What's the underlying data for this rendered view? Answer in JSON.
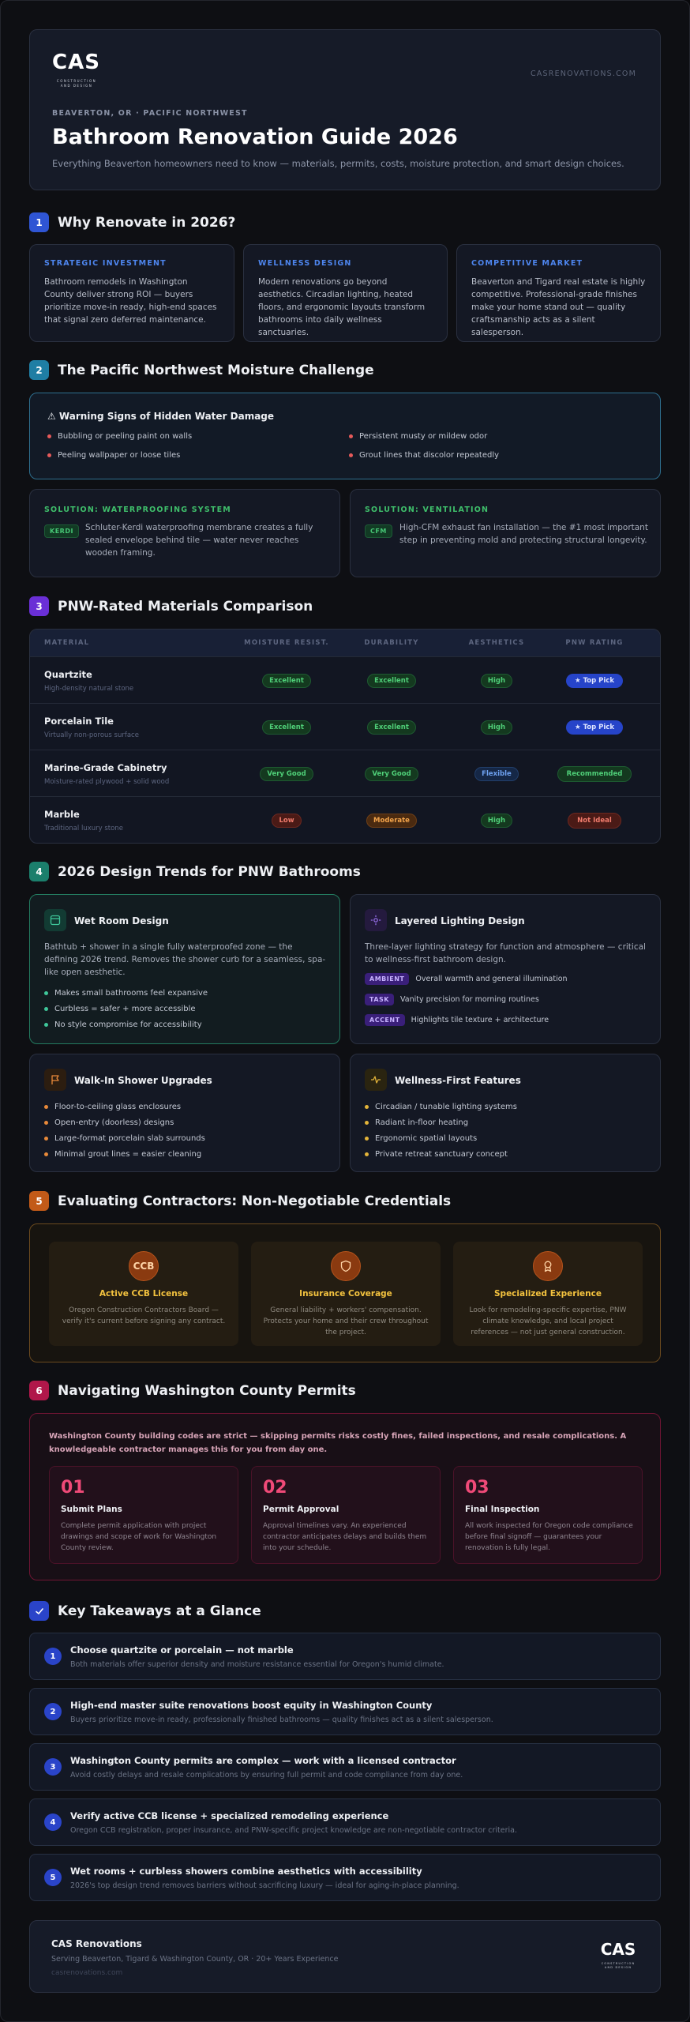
{
  "brand": {
    "logo": "CAS",
    "logo_sub": "CONSTRUCTION AND DESIGN",
    "site": "CASRENOVATIONS.COM"
  },
  "hero": {
    "location": "BEAVERTON, OR · PACIFIC NORTHWEST",
    "title": "Bathroom Renovation Guide 2026",
    "subtitle": "Everything Beaverton homeowners need to know — materials, permits, costs, moisture protection, and smart design choices."
  },
  "s1": {
    "num": "1",
    "title": "Why Renovate in 2026?",
    "cards": [
      {
        "kicker": "STRATEGIC INVESTMENT",
        "text": "Bathroom remodels in Washington County deliver strong ROI — buyers prioritize move-in ready, high-end spaces that signal zero deferred maintenance."
      },
      {
        "kicker": "WELLNESS DESIGN",
        "text": "Modern renovations go beyond aesthetics. Circadian lighting, heated floors, and ergonomic layouts transform bathrooms into daily wellness sanctuaries."
      },
      {
        "kicker": "COMPETITIVE MARKET",
        "text": "Beaverton and Tigard real estate is highly competitive. Professional-grade finishes make your home stand out — quality craftsmanship acts as a silent salesperson."
      }
    ]
  },
  "s2": {
    "num": "2",
    "title": "The Pacific Northwest Moisture Challenge",
    "warning": {
      "title": "⚠ Warning Signs of Hidden Water Damage",
      "items": [
        "Bubbling or peeling paint on walls",
        "Persistent musty or mildew odor",
        "Peeling wallpaper or loose tiles",
        "Grout lines that discolor repeatedly"
      ]
    },
    "solutions": [
      {
        "kicker": "SOLUTION: WATERPROOFING SYSTEM",
        "tag": "KERDI",
        "text": "Schluter-Kerdi waterproofing membrane creates a fully sealed envelope behind tile — water never reaches wooden framing."
      },
      {
        "kicker": "SOLUTION: VENTILATION",
        "tag": "CFM",
        "text": "High-CFM exhaust fan installation — the #1 most important step in preventing mold and protecting structural longevity."
      }
    ]
  },
  "s3": {
    "num": "3",
    "title": "PNW-Rated Materials Comparison",
    "headers": [
      "MATERIAL",
      "MOISTURE RESIST.",
      "DURABILITY",
      "AESTHETICS",
      "PNW RATING"
    ],
    "rows": [
      {
        "name": "Quartzite",
        "sub": "High-density natural stone",
        "moisture": "Excellent",
        "durability": "Excellent",
        "aesthetics": "High",
        "rating": "★ Top Pick"
      },
      {
        "name": "Porcelain Tile",
        "sub": "Virtually non-porous surface",
        "moisture": "Excellent",
        "durability": "Excellent",
        "aesthetics": "High",
        "rating": "★ Top Pick"
      },
      {
        "name": "Marine-Grade Cabinetry",
        "sub": "Moisture-rated plywood + solid wood",
        "moisture": "Very Good",
        "durability": "Very Good",
        "aesthetics": "Flexible",
        "rating": "Recommended"
      },
      {
        "name": "Marble",
        "sub": "Traditional luxury stone",
        "moisture": "Low",
        "durability": "Moderate",
        "aesthetics": "High",
        "rating": "Not Ideal"
      }
    ]
  },
  "s4": {
    "num": "4",
    "title": "2026 Design Trends for PNW Bathrooms",
    "wet": {
      "title": "Wet Room Design",
      "text": "Bathtub + shower in a single fully waterproofed zone — the defining 2026 trend. Removes the shower curb for a seamless, spa-like open aesthetic.",
      "items": [
        "Makes small bathrooms feel expansive",
        "Curbless = safer + more accessible",
        "No style compromise for accessibility"
      ]
    },
    "light": {
      "title": "Layered Lighting Design",
      "text": "Three-layer lighting strategy for function and atmosphere — critical to wellness-first bathroom design.",
      "layers": [
        {
          "tag": "AMBIENT",
          "text": "Overall warmth and general illumination"
        },
        {
          "tag": "TASK",
          "text": "Vanity precision for morning routines"
        },
        {
          "tag": "ACCENT",
          "text": "Highlights tile texture + architecture"
        }
      ]
    },
    "shower": {
      "title": "Walk-In Shower Upgrades",
      "items": [
        "Floor-to-ceiling glass enclosures",
        "Open-entry (doorless) designs",
        "Large-format porcelain slab surrounds",
        "Minimal grout lines = easier cleaning"
      ]
    },
    "wellness": {
      "title": "Wellness-First Features",
      "items": [
        "Circadian / tunable lighting systems",
        "Radiant in-floor heating",
        "Ergonomic spatial layouts",
        "Private retreat sanctuary concept"
      ]
    }
  },
  "s5": {
    "num": "5",
    "title": "Evaluating Contractors: Non-Negotiable Credentials",
    "cards": [
      {
        "badge": "CCB",
        "title": "Active CCB License",
        "text": "Oregon Construction Contractors Board — verify it's current before signing any contract."
      },
      {
        "badge": "",
        "title": "Insurance Coverage",
        "text": "General liability + workers' compensation. Protects your home and their crew throughout the project."
      },
      {
        "badge": "",
        "title": "Specialized Experience",
        "text": "Look for remodeling-specific expertise, PNW climate knowledge, and local project references — not just general construction."
      }
    ]
  },
  "s6": {
    "num": "6",
    "title": "Navigating Washington County Permits",
    "intro": "Washington County building codes are strict — skipping permits risks costly fines, failed inspections, and resale complications. A knowledgeable contractor manages this for you from day one.",
    "steps": [
      {
        "num": "01",
        "title": "Submit Plans",
        "text": "Complete permit application with project drawings and scope of work for Washington County review."
      },
      {
        "num": "02",
        "title": "Permit Approval",
        "text": "Approval timelines vary. An experienced contractor anticipates delays and builds them into your schedule."
      },
      {
        "num": "03",
        "title": "Final Inspection",
        "text": "All work inspected for Oregon code compliance before final signoff — guarantees your renovation is fully legal."
      }
    ]
  },
  "s7": {
    "title": "Key Takeaways at a Glance",
    "items": [
      {
        "n": "1",
        "title": "Choose quartzite or porcelain — not marble",
        "sub": "Both materials offer superior density and moisture resistance essential for Oregon's humid climate."
      },
      {
        "n": "2",
        "title": "High-end master suite renovations boost equity in Washington County",
        "sub": "Buyers prioritize move-in ready, professionally finished bathrooms — quality finishes act as a silent salesperson."
      },
      {
        "n": "3",
        "title": "Washington County permits are complex — work with a licensed contractor",
        "sub": "Avoid costly delays and resale complications by ensuring full permit and code compliance from day one."
      },
      {
        "n": "4",
        "title": "Verify active CCB license + specialized remodeling experience",
        "sub": "Oregon CCB registration, proper insurance, and PNW-specific project knowledge are non-negotiable contractor criteria."
      },
      {
        "n": "5",
        "title": "Wet rooms + curbless showers combine aesthetics with accessibility",
        "sub": "2026's top design trend removes barriers without sacrificing luxury — ideal for aging-in-place planning."
      }
    ]
  },
  "footer": {
    "name": "CAS Renovations",
    "sub": "Serving Beaverton, Tigard & Washington County, OR · 20+ Years Experience",
    "site": "casrenovations.com"
  }
}
